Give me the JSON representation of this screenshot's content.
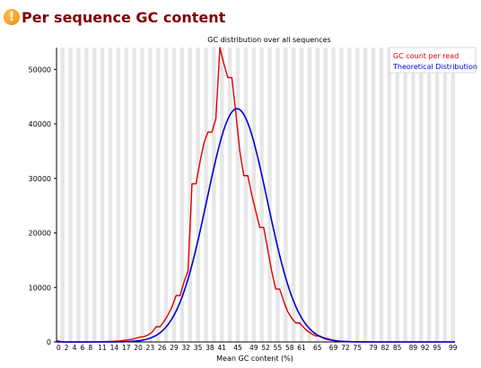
{
  "header": {
    "title": "Per sequence GC content",
    "status_icon": "warning-icon",
    "status_color": "#f39c12"
  },
  "chart_data": {
    "type": "line",
    "title": "GC distribution over all sequences",
    "xlabel": "Mean GC content (%)",
    "ylabel": "",
    "xlim": [
      0,
      100
    ],
    "ylim": [
      0,
      54000
    ],
    "x_ticks": [
      "0",
      "2",
      "4",
      "6",
      "8",
      "11",
      "14",
      "17",
      "20",
      "23",
      "26",
      "29",
      "32",
      "35",
      "38",
      "41",
      "45",
      "49",
      "52",
      "55",
      "58",
      "61",
      "65",
      "69",
      "72",
      "75",
      "79",
      "82",
      "85",
      "89",
      "92",
      "95",
      "99"
    ],
    "y_ticks": [
      0,
      10000,
      20000,
      30000,
      40000,
      50000
    ],
    "grid": "alternating vertical bands",
    "legend_position": "top-right",
    "series": [
      {
        "name": "GC count per read",
        "color": "#e00000",
        "x": [
          0,
          1,
          2,
          3,
          4,
          5,
          6,
          7,
          8,
          9,
          10,
          11,
          12,
          13,
          14,
          15,
          16,
          17,
          18,
          19,
          20,
          21,
          22,
          23,
          24,
          25,
          26,
          27,
          28,
          29,
          30,
          31,
          32,
          33,
          34,
          35,
          36,
          37,
          38,
          39,
          40,
          41,
          42,
          43,
          44,
          45,
          46,
          47,
          48,
          49,
          50,
          51,
          52,
          53,
          54,
          55,
          56,
          57,
          58,
          59,
          60,
          61,
          62,
          63,
          64,
          65,
          66,
          67,
          68,
          69,
          70,
          71,
          72,
          73,
          74,
          75,
          76,
          77,
          78,
          79,
          80,
          81,
          82,
          83,
          84,
          85,
          86,
          87,
          88,
          89,
          90,
          91,
          92,
          93,
          94,
          95,
          96,
          97,
          98,
          99,
          100
        ],
        "y": [
          250,
          100,
          0,
          0,
          0,
          0,
          0,
          0,
          0,
          0,
          50,
          50,
          50,
          100,
          100,
          150,
          200,
          300,
          400,
          500,
          700,
          900,
          1000,
          1300,
          1800,
          2800,
          2800,
          3800,
          5000,
          6500,
          8500,
          8500,
          11000,
          13000,
          29000,
          29000,
          33000,
          36500,
          38500,
          38500,
          41000,
          54000,
          51000,
          48500,
          48500,
          42000,
          35000,
          30500,
          30500,
          27000,
          24000,
          21000,
          21000,
          17000,
          13000,
          9700,
          9700,
          7500,
          5600,
          4400,
          3500,
          3500,
          2700,
          2000,
          1500,
          1100,
          1100,
          800,
          600,
          400,
          250,
          150,
          100,
          80,
          60,
          40,
          30,
          20,
          10,
          5,
          5,
          5,
          5,
          5,
          5,
          5,
          5,
          5,
          5,
          5,
          5,
          5,
          5,
          5,
          5,
          5,
          5,
          5,
          5,
          5,
          5
        ]
      },
      {
        "name": "Theoretical Distribution",
        "color": "#0000d0",
        "model": "normal",
        "mean": 45.3,
        "sd": 7.6,
        "peak": 42800
      }
    ]
  }
}
